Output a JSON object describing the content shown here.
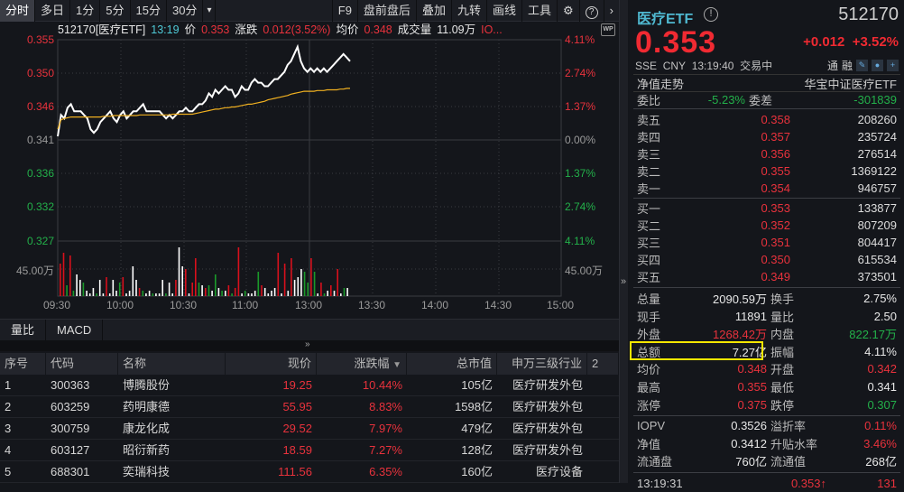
{
  "toolbar": {
    "tabs": [
      "分时",
      "多日",
      "1分",
      "5分",
      "15分",
      "30分"
    ],
    "dropdown_icon": "▾",
    "right": [
      "F9",
      "盘前盘后",
      "叠加",
      "九转",
      "画线",
      "工具"
    ],
    "gear_icon": "⚙",
    "help_icon": "?",
    "more_icon": "›"
  },
  "infobar": {
    "code_name": "512170[医疗ETF]",
    "time": "13:19",
    "price_label": "价",
    "price": "0.353",
    "change_label": "涨跌",
    "change": "0.012(3.52%)",
    "avg_label": "均价",
    "avg": "0.348",
    "vol_label": "成交量",
    "vol": "11.09万",
    "iopv": "IO..."
  },
  "chart_data": {
    "type": "line",
    "title": "512170[医疗ETF] 分时",
    "x_ticks": [
      "09:30",
      "10:00",
      "10:30",
      "11:00",
      "13:00",
      "13:30",
      "14:00",
      "14:30",
      "15:00"
    ],
    "y_left_ticks": [
      "0.355",
      "0.350",
      "0.346",
      "0.341",
      "0.336",
      "0.332",
      "0.327"
    ],
    "y_right_ticks": [
      "4.11%",
      "2.74%",
      "1.37%",
      "0.00%",
      "1.37%",
      "2.74%",
      "4.11%"
    ],
    "volume_tick": "45.00万",
    "ylim": [
      0.327,
      0.355
    ],
    "prev_close": 0.341,
    "series": [
      {
        "name": "价格",
        "color": "#ffffff",
        "values": [
          0.3415,
          0.3445,
          0.344,
          0.3455,
          0.346,
          0.345,
          0.345,
          0.345,
          0.3445,
          0.344,
          0.3425,
          0.342,
          0.3425,
          0.3435,
          0.344,
          0.3445,
          0.345,
          0.344,
          0.3435,
          0.3445,
          0.345,
          0.344,
          0.3445,
          0.345,
          0.345,
          0.3455,
          0.346,
          0.345,
          0.345,
          0.345,
          0.345,
          0.345,
          0.3445,
          0.344,
          0.3445,
          0.344,
          0.3445,
          0.345,
          0.345,
          0.3455,
          0.345,
          0.345,
          0.3455,
          0.346,
          0.346,
          0.3465,
          0.3475,
          0.347,
          0.348,
          0.3475,
          0.348,
          0.3485,
          0.348,
          0.348,
          0.347,
          0.3475,
          0.3485,
          0.348,
          0.348,
          0.349,
          0.3495,
          0.349,
          0.349,
          0.3485,
          0.3485,
          0.349,
          0.3495,
          0.3495,
          0.35,
          0.3505,
          0.3515,
          0.352,
          0.353,
          0.354,
          0.352,
          0.351,
          0.3505,
          0.351,
          0.3505,
          0.351,
          0.3505,
          0.351,
          0.3505,
          0.351,
          0.3515,
          0.352,
          0.3525,
          0.353,
          0.3525,
          0.352
        ]
      },
      {
        "name": "均价",
        "color": "#f0b020",
        "values": [
          0.3425,
          0.3438,
          0.344,
          0.3441,
          0.3442,
          0.3442,
          0.3442,
          0.3442,
          0.3442,
          0.3442,
          0.3442,
          0.3442,
          0.3442,
          0.3442,
          0.3443,
          0.3443,
          0.3443,
          0.3444,
          0.3444,
          0.3444,
          0.3444,
          0.3444,
          0.3444,
          0.3444,
          0.3444,
          0.3445,
          0.3445,
          0.3445,
          0.3445,
          0.3445,
          0.3445,
          0.3445,
          0.3445,
          0.3445,
          0.3445,
          0.3446,
          0.3446,
          0.3446,
          0.3446,
          0.3446,
          0.3446,
          0.3446,
          0.3447,
          0.3448,
          0.3449,
          0.345,
          0.3451,
          0.3452,
          0.3453,
          0.3453,
          0.3454,
          0.3455,
          0.3455,
          0.3456,
          0.3456,
          0.3457,
          0.3458,
          0.3459,
          0.346,
          0.346,
          0.3461,
          0.3462,
          0.3463,
          0.3464,
          0.3466,
          0.3467,
          0.3468,
          0.3469,
          0.347,
          0.3471,
          0.3472,
          0.3474,
          0.3475,
          0.3476,
          0.3477,
          0.3478,
          0.3478,
          0.3478,
          0.3478,
          0.3479,
          0.3479,
          0.3479,
          0.348,
          0.348,
          0.348,
          0.348,
          0.3481,
          0.3481,
          0.3482,
          0.3482
        ]
      }
    ]
  },
  "subtabs": [
    "量比",
    "MACD"
  ],
  "table": {
    "headers": [
      "序号",
      "代码",
      "名称",
      "现价",
      "涨跌幅",
      "总市值",
      "申万三级行业",
      "2"
    ],
    "sort_icon": "▼",
    "rows": [
      {
        "idx": "1",
        "code": "300363",
        "name": "博腾股份",
        "price": "19.25",
        "pct": "10.44%",
        "cap": "105亿",
        "industry": "医疗研发外包"
      },
      {
        "idx": "2",
        "code": "603259",
        "name": "药明康德",
        "price": "55.95",
        "pct": "8.83%",
        "cap": "1598亿",
        "industry": "医疗研发外包"
      },
      {
        "idx": "3",
        "code": "300759",
        "name": "康龙化成",
        "price": "29.52",
        "pct": "7.97%",
        "cap": "479亿",
        "industry": "医疗研发外包"
      },
      {
        "idx": "4",
        "code": "603127",
        "name": "昭衍新药",
        "price": "18.59",
        "pct": "7.27%",
        "cap": "128亿",
        "industry": "医疗研发外包"
      },
      {
        "idx": "5",
        "code": "688301",
        "name": "奕瑞科技",
        "price": "111.56",
        "pct": "6.35%",
        "cap": "160亿",
        "industry": "医疗设备"
      }
    ]
  },
  "quote": {
    "name": "医疗ETF",
    "info_icon": "!",
    "code": "512170",
    "price": "0.353",
    "change": "+0.012",
    "change_pct": "+3.52%",
    "exchange": "SSE",
    "currency": "CNY",
    "time": "13:19:40",
    "status": "交易中",
    "tong": "通",
    "rong": "融",
    "nav_label": "净值走势",
    "index_name": "华宝中证医疗ETF",
    "weibi_label": "委比",
    "weibi": "-5.23%",
    "weicha_label": "委差",
    "weicha": "-301839",
    "asks": [
      {
        "label": "卖五",
        "price": "0.358",
        "vol": "208260"
      },
      {
        "label": "卖四",
        "price": "0.357",
        "vol": "235724"
      },
      {
        "label": "卖三",
        "price": "0.356",
        "vol": "276514"
      },
      {
        "label": "卖二",
        "price": "0.355",
        "vol": "1369122"
      },
      {
        "label": "卖一",
        "price": "0.354",
        "vol": "946757"
      }
    ],
    "bids": [
      {
        "label": "买一",
        "price": "0.353",
        "vol": "133877"
      },
      {
        "label": "买二",
        "price": "0.352",
        "vol": "807209"
      },
      {
        "label": "买三",
        "price": "0.351",
        "vol": "804417"
      },
      {
        "label": "买四",
        "price": "0.350",
        "vol": "615534"
      },
      {
        "label": "买五",
        "price": "0.349",
        "vol": "373501"
      }
    ],
    "stats": [
      {
        "l": "总量",
        "v": "2090.59万",
        "vc": "white",
        "l2": "换手",
        "v2": "2.75%",
        "v2c": "white"
      },
      {
        "l": "现手",
        "v": "11891",
        "vc": "white",
        "l2": "量比",
        "v2": "2.50",
        "v2c": "white"
      },
      {
        "l": "外盘",
        "v": "1268.42万",
        "vc": "red",
        "l2": "内盘",
        "v2": "822.17万",
        "v2c": "green"
      },
      {
        "l": "总额",
        "v": "7.27亿",
        "vc": "white",
        "l2": "振幅",
        "v2": "4.11%",
        "v2c": "white"
      },
      {
        "l": "均价",
        "v": "0.348",
        "vc": "red",
        "l2": "开盘",
        "v2": "0.342",
        "v2c": "red"
      },
      {
        "l": "最高",
        "v": "0.355",
        "vc": "red",
        "l2": "最低",
        "v2": "0.341",
        "v2c": "white"
      },
      {
        "l": "涨停",
        "v": "0.375",
        "vc": "red",
        "l2": "跌停",
        "v2": "0.307",
        "v2c": "green"
      }
    ],
    "etf_stats": [
      {
        "l": "IOPV",
        "v": "0.3526",
        "vc": "white",
        "l2": "溢折率",
        "v2": "0.11%",
        "v2c": "red"
      },
      {
        "l": "净值",
        "v": "0.3412",
        "vc": "white",
        "l2": "升贴水率",
        "v2": "3.46%",
        "v2c": "red"
      },
      {
        "l": "流通盘",
        "v": "760亿",
        "vc": "white",
        "l2": "流通值",
        "v2": "268亿",
        "v2c": "white"
      }
    ],
    "tick": {
      "time": "13:19:31",
      "price": "0.353",
      "arrow": "↑",
      "vol": "131"
    }
  }
}
